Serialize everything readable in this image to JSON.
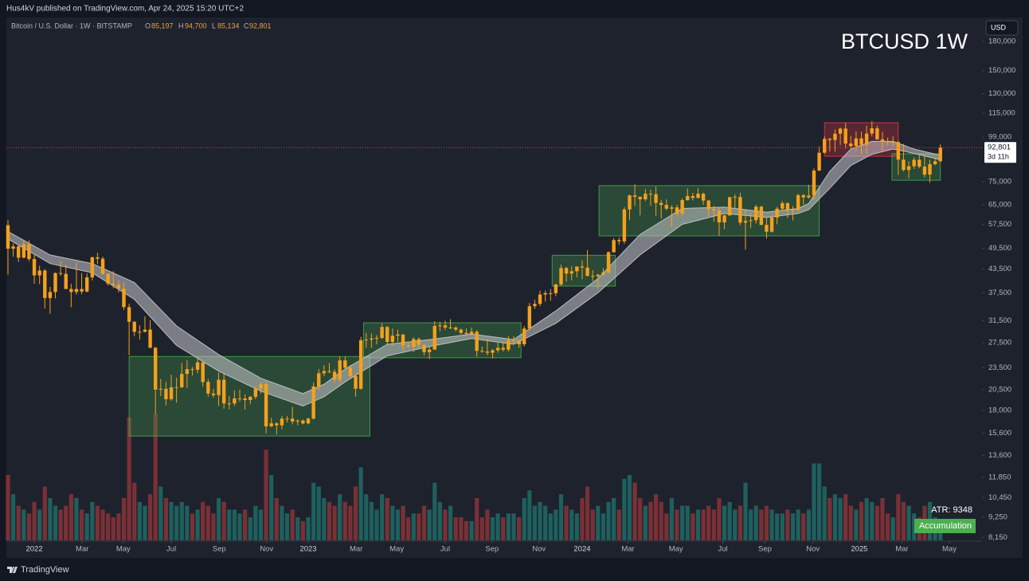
{
  "header": "Hus4kV published on TradingView.com, Apr 24, 2025 15:20 UTC+2",
  "footer": "TradingView",
  "chart_data": {
    "type": "candlestick",
    "title": "BTCUSD 1W",
    "symbol": "Bitcoin / U.S. Dollar · 1W · BITSTAMP",
    "ohlc": {
      "o_label": "O",
      "o": "85,197",
      "h_label": "H",
      "h": "94,700",
      "l_label": "L",
      "l": "85,134",
      "c_label": "C",
      "c": "92,801"
    },
    "currency": "USD",
    "last_price_label": "92,801",
    "countdown": "3d 11h",
    "atr": "ATR: 9348",
    "signal": "Accumulation",
    "log_scale": true,
    "grid": false,
    "candle_color": "#f5a11c",
    "volume_up_color": "#1f6b66",
    "volume_down_color": "#8c3338",
    "price_line_color": "#f23645",
    "band_color": "#c8c8cc",
    "xlim": [
      -0.3,
      184.9
    ],
    "ylim": [
      8000,
      209000
    ],
    "volume_lim": [
      0,
      680
    ],
    "xticks": [
      {
        "value": 5,
        "label": "2022"
      },
      {
        "value": 14.1,
        "label": "Mar"
      },
      {
        "value": 21.9,
        "label": "May"
      },
      {
        "value": 31,
        "label": "Jul"
      },
      {
        "value": 40.1,
        "label": "Sep"
      },
      {
        "value": 49.1,
        "label": "Nov"
      },
      {
        "value": 57,
        "label": "2023"
      },
      {
        "value": 66.1,
        "label": "Mar"
      },
      {
        "value": 73.8,
        "label": "May"
      },
      {
        "value": 83,
        "label": "Jul"
      },
      {
        "value": 91.9,
        "label": "Sep"
      },
      {
        "value": 100.8,
        "label": "Nov"
      },
      {
        "value": 109,
        "label": "2024"
      },
      {
        "value": 117.7,
        "label": "Mar"
      },
      {
        "value": 126.8,
        "label": "May"
      },
      {
        "value": 135.7,
        "label": "Jul"
      },
      {
        "value": 143.7,
        "label": "Sep"
      },
      {
        "value": 152.8,
        "label": "Nov"
      },
      {
        "value": 161.6,
        "label": "2025"
      },
      {
        "value": 169.7,
        "label": "Mar"
      },
      {
        "value": 178.7,
        "label": "May"
      }
    ],
    "yticks": [
      {
        "value": 180000,
        "label": "180,000"
      },
      {
        "value": 150000,
        "label": "150,000"
      },
      {
        "value": 130000,
        "label": "130,000"
      },
      {
        "value": 115000,
        "label": "115,000"
      },
      {
        "value": 99000,
        "label": "99,000"
      },
      {
        "value": 75000,
        "label": "75,000"
      },
      {
        "value": 65000,
        "label": "65,000"
      },
      {
        "value": 57500,
        "label": "57,500"
      },
      {
        "value": 49500,
        "label": "49,500"
      },
      {
        "value": 43500,
        "label": "43,500"
      },
      {
        "value": 37500,
        "label": "37,500"
      },
      {
        "value": 31500,
        "label": "31,500"
      },
      {
        "value": 27500,
        "label": "27,500"
      },
      {
        "value": 23500,
        "label": "23,500"
      },
      {
        "value": 20500,
        "label": "20,500"
      },
      {
        "value": 18000,
        "label": "18,000"
      },
      {
        "value": 15600,
        "label": "15,600"
      },
      {
        "value": 13600,
        "label": "13,600"
      },
      {
        "value": 11850,
        "label": "11,850"
      },
      {
        "value": 10450,
        "label": "10,450"
      },
      {
        "value": 9250,
        "label": "9,250"
      },
      {
        "value": 8150,
        "label": "8,150"
      }
    ],
    "open": [
      57200,
      49400,
      50100,
      46700,
      50800,
      46300,
      41800,
      43100,
      36300,
      37700,
      42400,
      42200,
      38400,
      37700,
      38400,
      37800,
      41300,
      46800,
      46400,
      42200,
      39700,
      39400,
      38500,
      34300,
      31300,
      29400,
      29400,
      29800,
      26600,
      20500,
      20600,
      19300,
      20800,
      20800,
      22600,
      23300,
      23200,
      24300,
      21500,
      20000,
      19800,
      21800,
      18800,
      18800,
      19400,
      19400,
      19200,
      19600,
      20600,
      21200,
      16300,
      16600,
      16400,
      17100,
      17100,
      16800,
      16900,
      16600,
      17100,
      20900,
      22700,
      23000,
      22900,
      21800,
      24600,
      23500,
      22300,
      20600,
      27900,
      28000,
      28200,
      28300,
      30300,
      27600,
      28700,
      28900,
      27000,
      26800,
      28100,
      27100,
      25900,
      26300,
      30500,
      30600,
      30200,
      30200,
      29800,
      29200,
      29000,
      29400,
      26100,
      26000,
      25800,
      26200,
      26600,
      26300,
      27900,
      27900,
      27200,
      30000,
      34500,
      35000,
      37100,
      37400,
      37400,
      39500,
      43800,
      42300,
      42900,
      44200,
      43900,
      41700,
      41600,
      42000,
      42600,
      48300,
      52100,
      51700,
      63100,
      68900,
      68300,
      67200,
      69600,
      69400,
      65700,
      64900,
      63400,
      63900,
      61500,
      66900,
      68600,
      67800,
      69600,
      66700,
      63200,
      62700,
      58200,
      60800,
      68100,
      68200,
      58100,
      58700,
      59000,
      64200,
      57300,
      54900,
      60000,
      63400,
      65600,
      62800,
      62900,
      69000,
      68000,
      68800,
      80400,
      89900,
      98000,
      97300,
      101200,
      104500,
      95200,
      93700,
      98300,
      94500,
      101300,
      104700,
      97700,
      96500,
      96100,
      96100,
      86100,
      80700,
      82600,
      86000,
      82400,
      78400,
      83700,
      85197
    ],
    "high": [
      59000,
      51000,
      50500,
      51800,
      52000,
      47500,
      44400,
      43500,
      38900,
      42600,
      45800,
      44700,
      39700,
      45400,
      42400,
      42300,
      47000,
      48200,
      47000,
      42400,
      42900,
      40600,
      40000,
      35000,
      31400,
      30600,
      32400,
      31600,
      26800,
      21900,
      21500,
      22500,
      22100,
      24200,
      24600,
      23600,
      25200,
      24400,
      21900,
      20600,
      22800,
      22700,
      19700,
      20400,
      20500,
      19900,
      19700,
      21000,
      21500,
      21500,
      17200,
      16700,
      17400,
      17400,
      18400,
      17000,
      17000,
      17200,
      21400,
      23300,
      23900,
      24200,
      23300,
      25200,
      25200,
      23900,
      22600,
      28500,
      29200,
      29100,
      28800,
      31000,
      30500,
      30000,
      29800,
      29000,
      27600,
      28400,
      28400,
      27200,
      26800,
      31400,
      31300,
      31500,
      31800,
      30400,
      30000,
      30000,
      30200,
      29700,
      26800,
      28100,
      26400,
      27500,
      27400,
      28600,
      28600,
      28000,
      30500,
      35200,
      35900,
      38000,
      38000,
      38400,
      39700,
      44700,
      44100,
      44300,
      43800,
      45900,
      49000,
      43200,
      42200,
      43800,
      48600,
      52800,
      52900,
      64000,
      69200,
      73800,
      68400,
      71700,
      71300,
      72800,
      67000,
      67200,
      64800,
      65000,
      67500,
      71900,
      70000,
      72000,
      70100,
      66900,
      64500,
      63800,
      61000,
      68300,
      69400,
      70000,
      62700,
      61800,
      65000,
      64500,
      59800,
      60700,
      64100,
      66500,
      66000,
      64500,
      69500,
      69500,
      73600,
      81500,
      93500,
      99600,
      98600,
      104000,
      105200,
      108300,
      99800,
      102700,
      102500,
      106400,
      109500,
      106400,
      102500,
      98800,
      99500,
      96500,
      95000,
      85300,
      87400,
      88800,
      88500,
      86100,
      86500,
      94700
    ],
    "low": [
      42000,
      47000,
      45500,
      46500,
      45700,
      39700,
      39600,
      34000,
      32900,
      36200,
      41700,
      39500,
      34300,
      37100,
      37200,
      37600,
      40500,
      44900,
      41900,
      39200,
      38600,
      37600,
      33700,
      25400,
      28600,
      28000,
      29300,
      26600,
      17600,
      19700,
      18600,
      19100,
      18900,
      20700,
      20700,
      22400,
      22700,
      20900,
      19600,
      19500,
      18500,
      18200,
      18100,
      18500,
      19000,
      18100,
      18700,
      19300,
      20000,
      15600,
      16200,
      15500,
      16000,
      16700,
      16500,
      16400,
      16500,
      16500,
      17000,
      20400,
      22300,
      22700,
      21400,
      21400,
      23200,
      21900,
      19600,
      20500,
      26600,
      26600,
      27200,
      28100,
      27100,
      26900,
      27600,
      26100,
      26600,
      25900,
      26600,
      25400,
      24800,
      26300,
      29500,
      29700,
      29900,
      29500,
      28900,
      28700,
      28700,
      25200,
      25800,
      25400,
      24900,
      25800,
      26000,
      26000,
      27200,
      26600,
      26800,
      29700,
      33900,
      34500,
      35500,
      35700,
      36700,
      39200,
      40200,
      40500,
      41300,
      40800,
      41500,
      40300,
      38500,
      41900,
      42300,
      48200,
      50600,
      50900,
      59000,
      64500,
      60800,
      66500,
      64500,
      60700,
      59600,
      62800,
      56500,
      60200,
      60700,
      66600,
      66700,
      67600,
      64900,
      60500,
      58500,
      53500,
      55800,
      60600,
      63500,
      57200,
      49100,
      56100,
      57800,
      57200,
      52600,
      54600,
      57500,
      62700,
      59800,
      58900,
      62400,
      65000,
      67500,
      66800,
      80200,
      89400,
      90700,
      90500,
      94200,
      92200,
      92500,
      91200,
      89200,
      89300,
      99500,
      97500,
      91200,
      94100,
      93400,
      78200,
      80000,
      76600,
      81200,
      81600,
      77000,
      74500,
      83100,
      85134
    ],
    "close": [
      49400,
      50100,
      46700,
      50800,
      46300,
      41800,
      43100,
      36300,
      37700,
      42400,
      42200,
      38400,
      37700,
      38400,
      37800,
      41300,
      46800,
      46400,
      42200,
      39700,
      39400,
      38500,
      34300,
      31300,
      29400,
      29400,
      29800,
      26600,
      20500,
      20600,
      19300,
      20800,
      20800,
      22600,
      23300,
      23200,
      24300,
      21500,
      20000,
      19800,
      21800,
      18800,
      18800,
      19400,
      19400,
      19200,
      19600,
      20600,
      21200,
      16300,
      16600,
      16400,
      17100,
      17100,
      16800,
      16900,
      16600,
      17100,
      20900,
      22700,
      23000,
      22900,
      21800,
      24600,
      23500,
      22300,
      20600,
      27900,
      28000,
      28200,
      28300,
      30300,
      27600,
      28700,
      28900,
      27000,
      26800,
      28100,
      27100,
      25900,
      26300,
      30500,
      30600,
      30200,
      30200,
      29800,
      29200,
      29000,
      29400,
      26100,
      26000,
      25800,
      26200,
      26600,
      26300,
      27900,
      27900,
      27200,
      30000,
      34500,
      35000,
      37100,
      37400,
      37400,
      39500,
      43800,
      42300,
      42900,
      44200,
      43900,
      41700,
      41600,
      42000,
      42600,
      48300,
      52100,
      51700,
      63100,
      68900,
      68300,
      67200,
      69600,
      69400,
      65700,
      64900,
      63400,
      63900,
      61500,
      66900,
      68600,
      67800,
      69600,
      66700,
      63200,
      62700,
      58200,
      60800,
      68100,
      68200,
      58100,
      58700,
      59000,
      64200,
      57300,
      54900,
      60000,
      63400,
      65600,
      62800,
      62900,
      69000,
      68000,
      68800,
      80400,
      89900,
      98000,
      97300,
      101200,
      104500,
      95200,
      93700,
      98300,
      94500,
      101300,
      104700,
      97700,
      96500,
      96100,
      96100,
      86100,
      80700,
      82600,
      86000,
      82400,
      78400,
      83700,
      85197,
      92801
    ],
    "volume": [
      85,
      60,
      45,
      40,
      35,
      50,
      40,
      70,
      55,
      45,
      40,
      45,
      60,
      55,
      40,
      35,
      50,
      45,
      40,
      35,
      30,
      35,
      55,
      160,
      75,
      50,
      45,
      60,
      165,
      70,
      55,
      50,
      45,
      50,
      45,
      35,
      40,
      50,
      45,
      35,
      55,
      50,
      40,
      40,
      35,
      40,
      30,
      45,
      40,
      118,
      85,
      55,
      45,
      35,
      40,
      30,
      25,
      30,
      75,
      70,
      55,
      50,
      45,
      60,
      50,
      45,
      70,
      95,
      60,
      50,
      40,
      60,
      55,
      45,
      40,
      45,
      30,
      35,
      35,
      45,
      40,
      75,
      50,
      40,
      45,
      30,
      30,
      25,
      25,
      55,
      30,
      40,
      30,
      35,
      30,
      35,
      35,
      30,
      55,
      65,
      45,
      50,
      45,
      35,
      40,
      60,
      45,
      40,
      35,
      55,
      70,
      40,
      45,
      35,
      50,
      55,
      40,
      80,
      85,
      75,
      55,
      45,
      50,
      60,
      50,
      35,
      55,
      40,
      45,
      45,
      35,
      40,
      40,
      45,
      40,
      55,
      45,
      50,
      40,
      45,
      75,
      40,
      45,
      40,
      45,
      40,
      35,
      35,
      40,
      35,
      40,
      35,
      40,
      100,
      100,
      70,
      55,
      60,
      55,
      60,
      45,
      40,
      50,
      55,
      50,
      45,
      55,
      35,
      30,
      60,
      50,
      45,
      35,
      30,
      45,
      50,
      30,
      25
    ],
    "band": {
      "x": [
        0,
        8,
        16,
        24,
        32,
        40,
        48,
        56,
        60,
        64,
        72,
        80,
        88,
        96,
        104,
        112,
        120,
        128,
        136,
        144,
        150,
        152,
        156,
        160,
        164,
        168,
        172,
        177
      ],
      "upper": [
        55000,
        47500,
        45000,
        40000,
        30500,
        25500,
        22000,
        20000,
        21200,
        23300,
        27200,
        28000,
        29000,
        28000,
        33500,
        41000,
        54000,
        63500,
        64000,
        62000,
        63500,
        65500,
        80000,
        92000,
        96500,
        96500,
        92000,
        88500
      ],
      "lower": [
        52500,
        45000,
        42500,
        36000,
        27000,
        23000,
        20300,
        18500,
        19600,
        21500,
        25300,
        26800,
        28200,
        27200,
        31000,
        37500,
        47500,
        57500,
        61500,
        60000,
        61500,
        63000,
        72000,
        83000,
        89000,
        92000,
        89500,
        86000
      ]
    },
    "zones": [
      {
        "from": 23,
        "to": 68.7,
        "low": 15340,
        "high": 25200,
        "color": "#4caf50"
      },
      {
        "from": 67.5,
        "to": 97.4,
        "low": 25000,
        "high": 31100,
        "color": "#4caf50"
      },
      {
        "from": 103.3,
        "to": 115.3,
        "low": 39100,
        "high": 47400,
        "color": "#4caf50"
      },
      {
        "from": 112.2,
        "to": 154,
        "low": 53500,
        "high": 73200,
        "color": "#4caf50"
      },
      {
        "from": 155,
        "to": 169,
        "low": 87900,
        "high": 108400,
        "color": "#f23645"
      },
      {
        "from": 167.8,
        "to": 177,
        "low": 75700,
        "high": 89300,
        "color": "#4caf50"
      }
    ]
  }
}
